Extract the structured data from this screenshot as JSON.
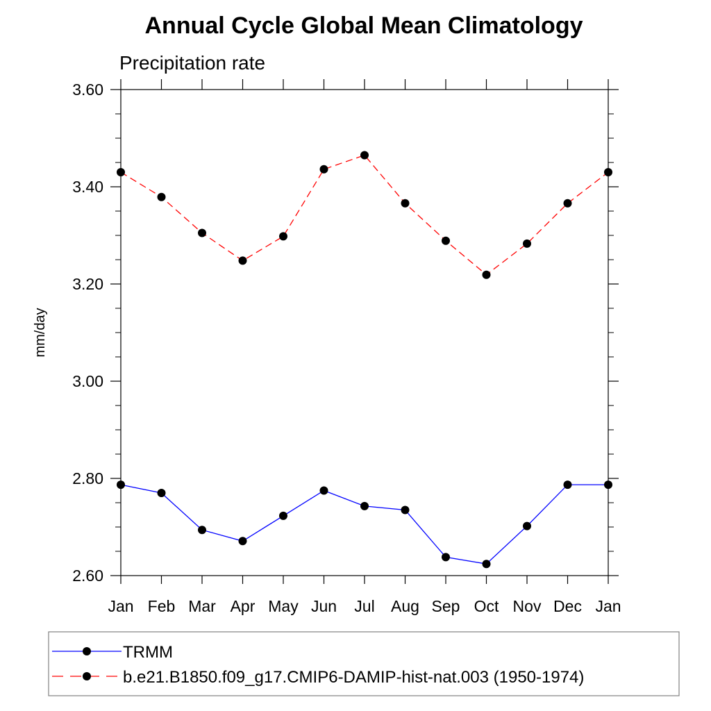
{
  "chart_data": {
    "type": "line",
    "title": "Annual Cycle Global Mean Climatology",
    "subtitle": "Precipitation rate",
    "xlabel": "",
    "ylabel": "mm/day",
    "categories": [
      "Jan",
      "Feb",
      "Mar",
      "Apr",
      "May",
      "Jun",
      "Jul",
      "Aug",
      "Sep",
      "Oct",
      "Nov",
      "Dec",
      "Jan"
    ],
    "ylim": [
      2.6,
      3.6
    ],
    "yticks": [
      "2.60",
      "2.80",
      "3.00",
      "3.20",
      "3.40",
      "3.60"
    ],
    "grid": false,
    "legend_position": "bottom",
    "series": [
      {
        "name": "TRMM",
        "color": "#0000ff",
        "line_style": "solid",
        "marker": "filled-circle",
        "values": [
          2.787,
          2.77,
          2.694,
          2.671,
          2.723,
          2.775,
          2.743,
          2.735,
          2.638,
          2.624,
          2.702,
          2.787,
          2.787
        ]
      },
      {
        "name": "b.e21.B1850.f09_g17.CMIP6-DAMIP-hist-nat.003 (1950-1974)",
        "color": "#ff0000",
        "line_style": "dashed",
        "marker": "filled-circle",
        "values": [
          3.43,
          3.379,
          3.305,
          3.248,
          3.298,
          3.436,
          3.465,
          3.366,
          3.289,
          3.219,
          3.283,
          3.366,
          3.43
        ]
      }
    ]
  }
}
